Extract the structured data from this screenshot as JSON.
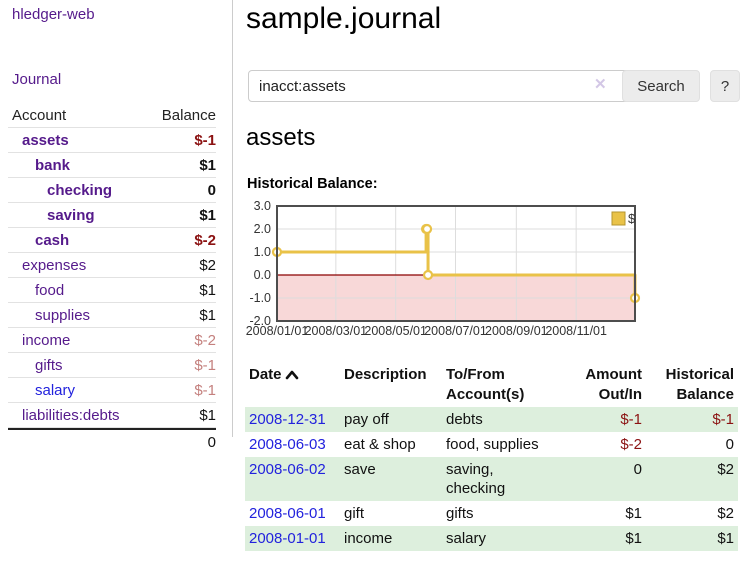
{
  "sidebar": {
    "brand": "hledger-web",
    "nav": {
      "journal": "Journal"
    },
    "accounts_table": {
      "header": {
        "account": "Account",
        "balance": "Balance"
      },
      "rows": [
        {
          "name": "assets",
          "balance": "$-1"
        },
        {
          "name": "bank",
          "balance": "$1"
        },
        {
          "name": "checking",
          "balance": "0"
        },
        {
          "name": "saving",
          "balance": "$1"
        },
        {
          "name": "cash",
          "balance": "$-2"
        },
        {
          "name": "expenses",
          "balance": "$2"
        },
        {
          "name": "food",
          "balance": "$1"
        },
        {
          "name": "supplies",
          "balance": "$1"
        },
        {
          "name": "income",
          "balance": "$-2"
        },
        {
          "name": "gifts",
          "balance": "$-1"
        },
        {
          "name": "salary",
          "balance": "$-1"
        },
        {
          "name": "liabilities:debts",
          "balance": "$1"
        }
      ],
      "total": "0"
    }
  },
  "main": {
    "title": "sample.journal",
    "search": {
      "value": "inacct:assets",
      "clear_icon": "✕",
      "search_button": "Search",
      "help_button": "?"
    },
    "account_heading": "assets",
    "chart_title": "Historical Balance:"
  },
  "chart_data": {
    "type": "line",
    "title": "Historical Balance",
    "x_range": [
      "2008-01-01",
      "2008-12-31"
    ],
    "ylim": [
      -2,
      3
    ],
    "y_ticks": [
      3.0,
      2.0,
      1.0,
      0.0,
      -1.0,
      -2.0
    ],
    "x_ticks": [
      {
        "date": "2008-01-01",
        "label": "2008/01/01"
      },
      {
        "date": "2008-03-01",
        "label": "2008/03/01"
      },
      {
        "date": "2008-05-01",
        "label": "2008/05/01"
      },
      {
        "date": "2008-07-01",
        "label": "2008/07/01"
      },
      {
        "date": "2008-09-01",
        "label": "2008/09/01"
      },
      {
        "date": "2008-11-01",
        "label": "2008/11/01"
      }
    ],
    "series": [
      {
        "name": "$",
        "step": true,
        "points": [
          {
            "date": "2008-01-01",
            "value": 1
          },
          {
            "date": "2008-06-01",
            "value": 2
          },
          {
            "date": "2008-06-02",
            "value": 2
          },
          {
            "date": "2008-06-03",
            "value": 0
          },
          {
            "date": "2008-12-31",
            "value": -1
          }
        ]
      }
    ],
    "legend": {
      "label": "$",
      "position": "top-right"
    },
    "grid": true,
    "colors": {
      "line": "#e9c248",
      "negative_region": "#f8d8d8",
      "zero_line": "#8b0000",
      "grid": "#dddddd",
      "border": "#4d4d4d"
    }
  },
  "register": {
    "headers": {
      "date": "Date",
      "description": "Description",
      "account": "To/From Account(s)",
      "amount": "Amount Out/In",
      "balance": "Historical Balance"
    },
    "rows": [
      {
        "date": "2008-12-31",
        "description": "pay off",
        "accounts": "debts",
        "amount": "$-1",
        "balance": "$-1"
      },
      {
        "date": "2008-06-03",
        "description": "eat & shop",
        "accounts": "food, supplies",
        "amount": "$-2",
        "balance": "0"
      },
      {
        "date": "2008-06-02",
        "description": "save",
        "accounts": "saving, checking",
        "amount": "0",
        "balance": "$2"
      },
      {
        "date": "2008-06-01",
        "description": "gift",
        "accounts": "gifts",
        "amount": "$1",
        "balance": "$2"
      },
      {
        "date": "2008-01-01",
        "description": "income",
        "accounts": "salary",
        "amount": "$1",
        "balance": "$1"
      }
    ]
  }
}
